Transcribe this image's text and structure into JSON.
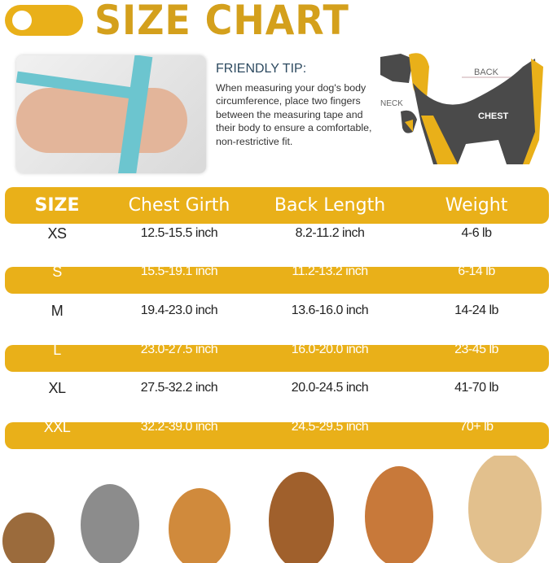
{
  "header": {
    "title": "SIZE CHART",
    "accent": "#e9b019"
  },
  "tip": {
    "title": "FRIENDLY TIP:",
    "text": "When measuring your dog's body circumference, place two fingers between the measuring tape and their body to ensure a comfortable, non-restrictive fit."
  },
  "diagram": {
    "labels": {
      "back": "BACK",
      "neck": "NECK",
      "chest": "CHEST"
    }
  },
  "table": {
    "columns": [
      "SIZE",
      "Chest Girth",
      "Back Length",
      "Weight"
    ],
    "rows": [
      [
        "XS",
        "12.5-15.5 inch",
        "8.2-11.2 inch",
        "4-6 lb"
      ],
      [
        "S",
        "15.5-19.1 inch",
        "11.2-13.2 inch",
        "6-14 lb"
      ],
      [
        "M",
        "19.4-23.0 inch",
        "13.6-16.0 inch",
        "14-24 lb"
      ],
      [
        "L",
        "23.0-27.5 inch",
        "16.0-20.0 inch",
        "23-45 lb"
      ],
      [
        "XL",
        "27.5-32.2 inch",
        "20.0-24.5 inch",
        "41-70 lb"
      ],
      [
        "XXL",
        "32.2-39.0 inch",
        "24.5-29.5 inch",
        "70+ lb"
      ]
    ]
  }
}
